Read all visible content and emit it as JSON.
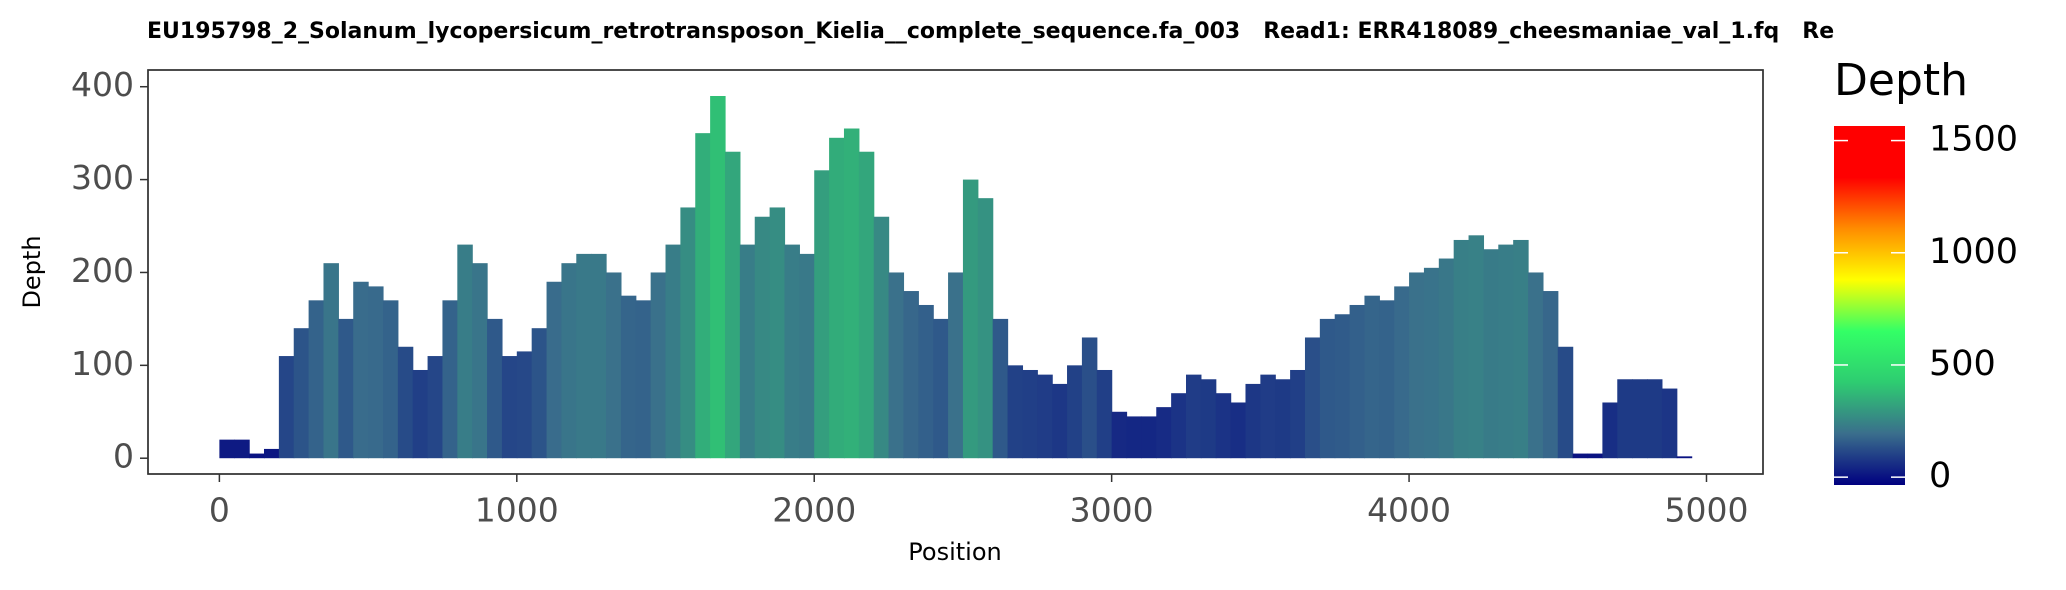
{
  "chart_data": {
    "type": "bar",
    "title": "EU195798_2_Solanum_lycopersicum_retrotransposon_Kielia__complete_sequence.fa_003   Read1: ERR418089_cheesmaniae_val_1.fq   Re",
    "x_label": "Position",
    "y_label": "Depth",
    "x": [
      0,
      50,
      100,
      150,
      200,
      250,
      300,
      350,
      400,
      450,
      500,
      550,
      600,
      650,
      700,
      750,
      800,
      850,
      900,
      950,
      1000,
      1050,
      1100,
      1150,
      1200,
      1250,
      1300,
      1350,
      1400,
      1450,
      1500,
      1550,
      1600,
      1650,
      1700,
      1750,
      1800,
      1850,
      1900,
      1950,
      2000,
      2050,
      2100,
      2150,
      2200,
      2250,
      2300,
      2350,
      2400,
      2450,
      2500,
      2550,
      2600,
      2650,
      2700,
      2750,
      2800,
      2850,
      2900,
      2950,
      3000,
      3050,
      3100,
      3150,
      3200,
      3250,
      3300,
      3350,
      3400,
      3450,
      3500,
      3550,
      3600,
      3650,
      3700,
      3750,
      3800,
      3850,
      3900,
      3950,
      4000,
      4050,
      4100,
      4150,
      4200,
      4250,
      4300,
      4350,
      4400,
      4450,
      4500,
      4550,
      4600,
      4650,
      4700,
      4750,
      4800,
      4850,
      4900
    ],
    "values": [
      20,
      20,
      5,
      10,
      110,
      140,
      170,
      210,
      150,
      190,
      185,
      170,
      120,
      95,
      110,
      170,
      230,
      210,
      150,
      110,
      115,
      140,
      190,
      210,
      220,
      220,
      200,
      175,
      170,
      200,
      230,
      270,
      350,
      390,
      330,
      230,
      260,
      270,
      230,
      220,
      310,
      345,
      355,
      330,
      260,
      200,
      180,
      165,
      150,
      200,
      300,
      280,
      150,
      100,
      95,
      90,
      80,
      100,
      130,
      95,
      50,
      45,
      45,
      55,
      70,
      90,
      85,
      70,
      60,
      80,
      90,
      85,
      95,
      130,
      150,
      155,
      165,
      175,
      170,
      185,
      200,
      205,
      215,
      235,
      240,
      225,
      230,
      235,
      200,
      180,
      120,
      5,
      5,
      60,
      85,
      85,
      85,
      75,
      2
    ],
    "xlim": [
      -240,
      5190
    ],
    "ylim": [
      -17,
      418
    ],
    "xticks": [
      0,
      1000,
      2000,
      3000,
      4000,
      5000
    ],
    "yticks": [
      0,
      100,
      200,
      300,
      400
    ],
    "colorbar": {
      "title": "Depth",
      "lim": [
        -35,
        1565
      ],
      "ticks": [
        0,
        500,
        1000,
        1500
      ],
      "colors": [
        "#000080",
        "#3a6e8c",
        "#2ecc71",
        "#33ff66",
        "#ffff00",
        "#ff8c00",
        "#ff0000",
        "#ff0000"
      ]
    }
  }
}
